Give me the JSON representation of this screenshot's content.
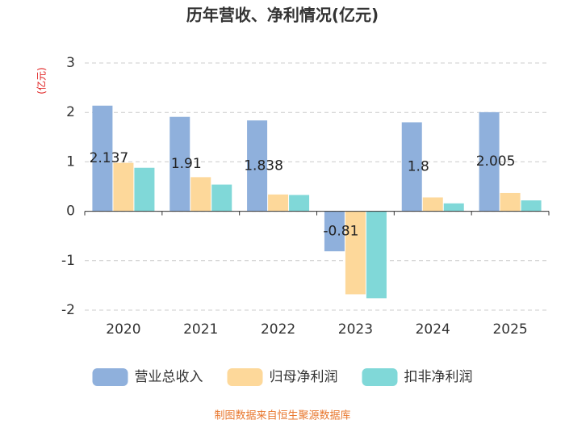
{
  "chart_data": {
    "type": "bar",
    "title": "历年营收、净利情况(亿元)",
    "y_label": "(亿元)",
    "source": "制图数据来自恒生聚源数据库",
    "categories": [
      "2020",
      "2021",
      "2022",
      "2023",
      "2024",
      "2025"
    ],
    "series": [
      {
        "name": "营业总收入",
        "color": "#8fb0dc",
        "data_labels": true,
        "values": [
          2.137,
          1.91,
          1.838,
          -0.81,
          1.8,
          2.005
        ]
      },
      {
        "name": "归母净利润",
        "color": "#fdd89a",
        "data_labels": false,
        "values": [
          0.98,
          0.69,
          0.34,
          -1.68,
          0.28,
          0.37
        ]
      },
      {
        "name": "扣非净利润",
        "color": "#80d8d8",
        "data_labels": false,
        "values": [
          0.88,
          0.54,
          0.33,
          -1.76,
          0.16,
          0.22
        ]
      }
    ],
    "ylim": [
      -2,
      3
    ],
    "yticks": [
      -2,
      -1,
      0,
      1,
      2,
      3
    ],
    "grid": true,
    "legend": "bottom"
  }
}
